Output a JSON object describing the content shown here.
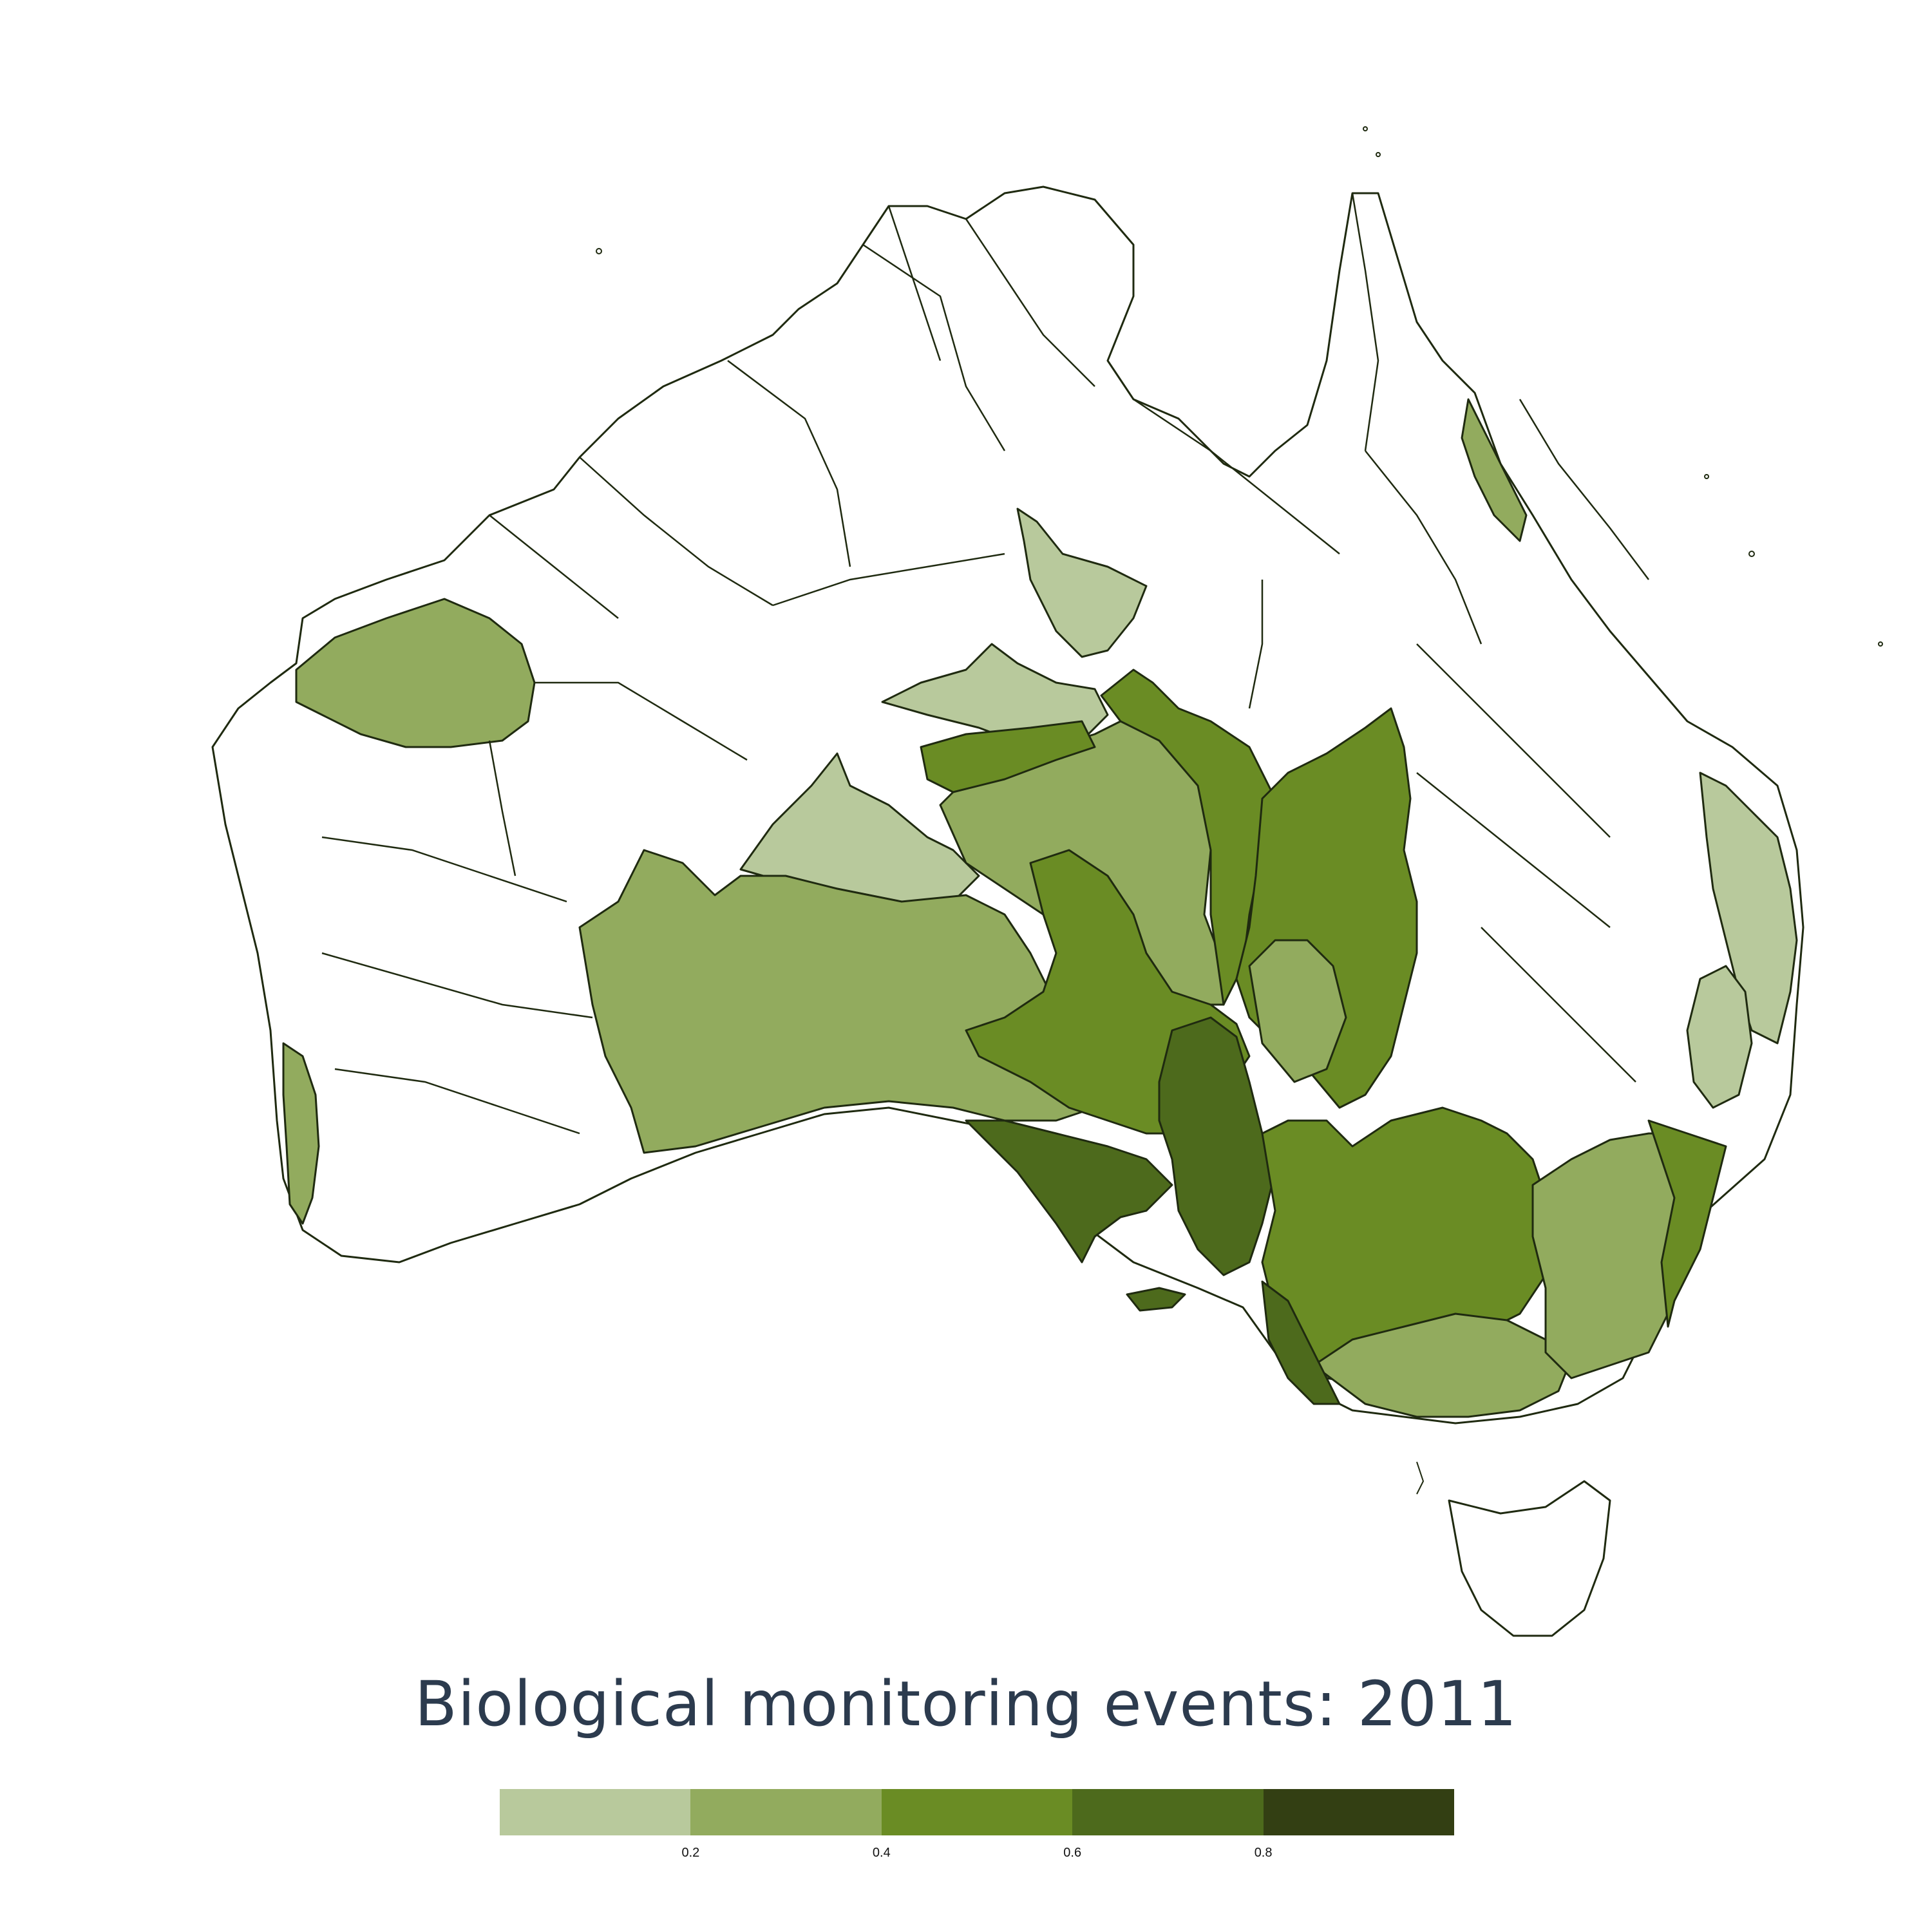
{
  "title": "Biological monitoring events: 2011",
  "legend": {
    "colors": [
      "#b8c99c",
      "#92ab5e",
      "#6a8c24",
      "#4d6a1c",
      "#333f13"
    ],
    "ticks": [
      {
        "label": "0.2",
        "value": 0.2
      },
      {
        "label": "0.4",
        "value": 0.4
      },
      {
        "label": "0.6",
        "value": 0.6
      },
      {
        "label": "0.8",
        "value": 0.8
      }
    ],
    "range": [
      0,
      1
    ]
  },
  "map": {
    "region": "Australia",
    "outline_color": "#1f2a10",
    "empty_fill": "#ffffff"
  }
}
